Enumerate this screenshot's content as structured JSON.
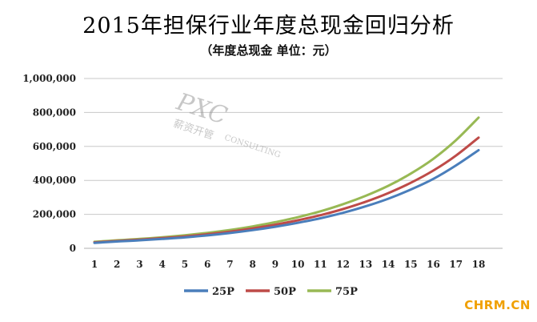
{
  "chart_data": {
    "type": "line",
    "title": "2015年担保行业年度总现金回归分析",
    "subtitle": "（年度总现金 单位：元）",
    "x": [
      1,
      2,
      3,
      4,
      5,
      6,
      7,
      8,
      9,
      10,
      11,
      12,
      13,
      14,
      15,
      16,
      17,
      18
    ],
    "x_tick_labels": [
      "1",
      "2",
      "3",
      "4",
      "5",
      "6",
      "7",
      "8",
      "9",
      "10",
      "11",
      "12",
      "13",
      "14",
      "15",
      "16",
      "17",
      "18"
    ],
    "y_tick_labels": [
      "0",
      "200,000",
      "400,000",
      "600,000",
      "800,000",
      "1,000,000"
    ],
    "ylim": [
      0,
      1000000
    ],
    "grid": true,
    "legend_position": "bottom",
    "series": [
      {
        "name": "25P",
        "color": "#4a7ebb",
        "values": [
          32000,
          40000,
          47000,
          55000,
          64000,
          76000,
          90000,
          107000,
          127000,
          150000,
          177000,
          209000,
          247000,
          292000,
          346000,
          409000,
          488000,
          578000
        ]
      },
      {
        "name": "50P",
        "color": "#be4b48",
        "values": [
          35000,
          43000,
          51000,
          60000,
          70000,
          83000,
          98000,
          117000,
          139000,
          165000,
          195000,
          231000,
          274000,
          325000,
          386000,
          458000,
          546000,
          652000
        ]
      },
      {
        "name": "75P",
        "color": "#98b954",
        "values": [
          38000,
          47000,
          55000,
          65000,
          77000,
          91000,
          108000,
          129000,
          154000,
          183000,
          218000,
          260000,
          309000,
          368000,
          440000,
          527000,
          637000,
          770000
        ]
      }
    ]
  },
  "watermark": {
    "logo_text": "PXC",
    "chinese_text": "薪资开管",
    "company_text": "CONSULTING"
  },
  "site_badge": "CHRM.CN"
}
